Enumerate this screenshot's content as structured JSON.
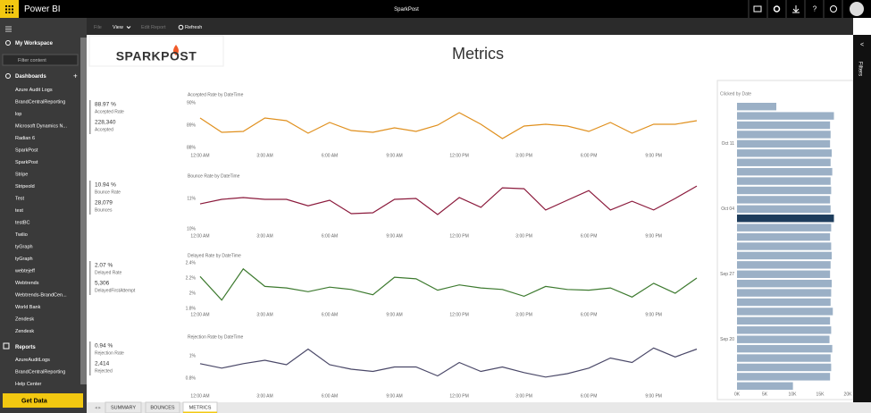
{
  "app": {
    "name": "Power BI",
    "report_name": "SparkPost"
  },
  "toolbar": [
    "File",
    "View",
    "Edit Report",
    "Refresh"
  ],
  "nav": {
    "workspace": "My Workspace",
    "filter_placeholder": "Filter content",
    "dashboards_label": "Dashboards",
    "dashboards": [
      "Azure Audit Logs",
      "BrandCentralReporting",
      "lop",
      "Microsoft Dynamics N...",
      "Radian 6",
      "SparkPost",
      "SparkPost",
      "Stripe",
      "Stripeold",
      "Test",
      "test",
      "testBC",
      "Twilio",
      "tyGraph",
      "tyGraph",
      "webtejeff",
      "Webtrends",
      "Webtrends-BrandCen...",
      "World Bank",
      "Zendesk",
      "Zendesk"
    ],
    "reports_label": "Reports",
    "reports": [
      "AzureAuditLogs",
      "BrandCentralReporting",
      "Help Center"
    ],
    "get_data": "Get Data"
  },
  "report": {
    "logo": "SPARKPOST",
    "title": "Metrics",
    "filters_label": "Filters",
    "kpis": [
      {
        "rate": "88.97 %",
        "rate_label": "Accepted Rate",
        "count": "228,340",
        "count_label": "Accepted"
      },
      {
        "rate": "10.94 %",
        "rate_label": "Bounce Rate",
        "count": "28,079",
        "count_label": "Bounces"
      },
      {
        "rate": "2.07 %",
        "rate_label": "Delayed Rate",
        "count": "5,306",
        "count_label": "DelayedFirstAttempt"
      },
      {
        "rate": "0.94 %",
        "rate_label": "Rejection Rate",
        "count": "2,414",
        "count_label": "Rejected"
      }
    ],
    "line_charts": [
      {
        "type": "line",
        "title": "Accepted Rate by DateTime",
        "color": "#e0901e",
        "categories": [
          "12:00 AM",
          null,
          null,
          "3:00 AM",
          null,
          null,
          "6:00 AM",
          null,
          null,
          "9:00 AM",
          null,
          null,
          "12:00 PM",
          null,
          null,
          "3:00 PM",
          null,
          null,
          "6:00 PM",
          null,
          null,
          "9:00 PM",
          null,
          null
        ],
        "values": [
          89.32,
          88.68,
          88.72,
          89.32,
          89.2,
          88.64,
          89.12,
          88.76,
          88.68,
          88.88,
          88.72,
          89.0,
          89.56,
          89.04,
          88.4,
          88.96,
          89.04,
          88.96,
          88.72,
          89.12,
          88.64,
          89.04,
          89.04,
          89.2
        ],
        "ylim": [
          88,
          90
        ],
        "yticks": [
          {
            "value": 90,
            "label": "90%"
          },
          {
            "value": 89,
            "label": "89%"
          },
          {
            "value": 88,
            "label": "88%"
          }
        ]
      },
      {
        "type": "line",
        "title": "Bounce Rate by DateTime",
        "color": "#8b1a3c",
        "categories": [
          "12:00 AM",
          null,
          null,
          "3:00 AM",
          null,
          null,
          "6:00 AM",
          null,
          null,
          "9:00 AM",
          null,
          null,
          "12:00 PM",
          null,
          null,
          "3:00 PM",
          null,
          null,
          "6:00 PM",
          null,
          null,
          "9:00 PM",
          null,
          null
        ],
        "values": [
          10.82,
          10.97,
          11.03,
          10.97,
          10.97,
          10.76,
          10.94,
          10.5,
          10.53,
          10.97,
          11.0,
          10.47,
          11.03,
          10.71,
          11.35,
          11.32,
          10.62,
          10.94,
          11.26,
          10.62,
          10.91,
          10.62,
          11.0,
          11.41
        ],
        "ylim": [
          10,
          11.5
        ],
        "yticks": [
          {
            "value": 11,
            "label": "11%"
          },
          {
            "value": 10,
            "label": "10%"
          }
        ]
      },
      {
        "type": "line",
        "title": "Delayed Rate by DateTime",
        "color": "#3d7a2f",
        "categories": [
          "12:00 AM",
          null,
          null,
          "3:00 AM",
          null,
          null,
          "6:00 AM",
          null,
          null,
          "9:00 AM",
          null,
          null,
          "12:00 PM",
          null,
          null,
          "3:00 PM",
          null,
          null,
          "6:00 PM",
          null,
          null,
          "9:00 PM",
          null,
          null
        ],
        "values": [
          2.22,
          1.91,
          2.32,
          2.09,
          2.07,
          2.02,
          2.08,
          2.05,
          1.98,
          2.21,
          2.19,
          2.04,
          2.11,
          2.07,
          2.05,
          1.96,
          2.09,
          2.05,
          2.04,
          2.07,
          1.95,
          2.13,
          2.0,
          2.2
        ],
        "ylim": [
          1.8,
          2.4
        ],
        "yticks": [
          {
            "value": 2.4,
            "label": "2.4%"
          },
          {
            "value": 2.2,
            "label": "2.2%"
          },
          {
            "value": 2,
            "label": "2%"
          },
          {
            "value": 1.8,
            "label": "1.8%"
          }
        ]
      },
      {
        "type": "line",
        "title": "Rejection Rate by DateTime",
        "color": "#4a4868",
        "categories": [
          "12:00 AM",
          null,
          null,
          "3:00 AM",
          null,
          null,
          "6:00 AM",
          null,
          null,
          "9:00 AM",
          null,
          null,
          "12:00 PM",
          null,
          null,
          "3:00 PM",
          null,
          null,
          "6:00 PM",
          null,
          null,
          "9:00 PM",
          null,
          null
        ],
        "values": [
          0.93,
          0.89,
          0.93,
          0.96,
          0.92,
          1.06,
          0.92,
          0.88,
          0.86,
          0.9,
          0.9,
          0.82,
          0.94,
          0.86,
          0.9,
          0.85,
          0.81,
          0.84,
          0.89,
          0.98,
          0.94,
          1.07,
          0.99,
          1.06
        ],
        "ylim": [
          0.8,
          1.1
        ],
        "yticks": [
          {
            "value": 1,
            "label": "1%"
          },
          {
            "value": 0.8,
            "label": "0.8%"
          }
        ]
      }
    ],
    "bar_chart": {
      "type": "bar",
      "orientation": "horizontal",
      "title": "Clicked by Date",
      "color": "#9bb0c6",
      "highlight_color": "#1e3d5c",
      "highlighted": [
        12
      ],
      "categories": [
        null,
        null,
        null,
        null,
        "Oct 11",
        null,
        null,
        null,
        null,
        null,
        null,
        "Oct 04",
        null,
        null,
        null,
        null,
        null,
        null,
        "Sep 27",
        null,
        null,
        null,
        null,
        null,
        null,
        "Sep 20",
        null,
        null,
        null,
        null,
        null
      ],
      "values": [
        7100,
        17500,
        16800,
        16900,
        16800,
        17100,
        16900,
        17200,
        16900,
        17000,
        16800,
        16900,
        17500,
        17000,
        16800,
        17000,
        17100,
        16900,
        16800,
        17100,
        17000,
        16900,
        17300,
        16800,
        17000,
        16700,
        17200,
        16900,
        17000,
        16800,
        10100
      ],
      "xlim": [
        0,
        20000
      ],
      "xticks": [
        {
          "value": 0,
          "label": "0K"
        },
        {
          "value": 5000,
          "label": "5K"
        },
        {
          "value": 10000,
          "label": "10K"
        },
        {
          "value": 15000,
          "label": "15K"
        },
        {
          "value": 20000,
          "label": "20K"
        }
      ]
    }
  },
  "tabs": [
    "SUMMARY",
    "BOUNCES",
    "METRICS"
  ]
}
